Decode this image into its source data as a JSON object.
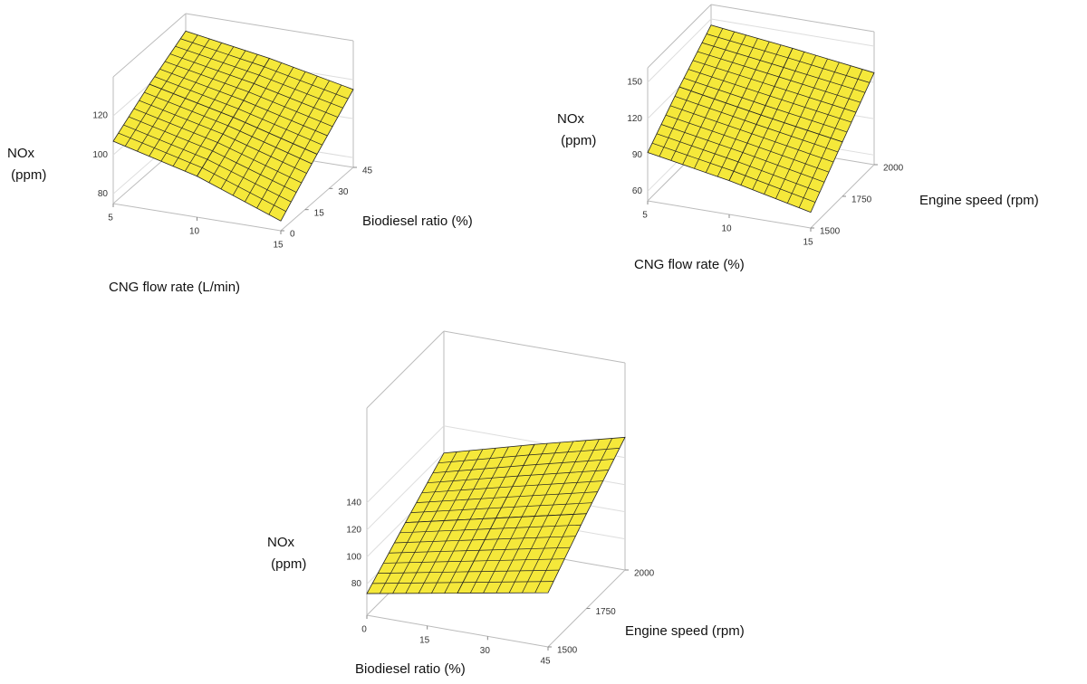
{
  "chart_data": [
    {
      "type": "surface",
      "x_label": "CNG flow rate (L/min)",
      "y_label": "Biodiesel ratio (%)",
      "z_label": "NOx (ppm)",
      "xlim": [
        5,
        15
      ],
      "ylim": [
        0,
        45
      ],
      "zlim": [
        75,
        140
      ],
      "xticks": [
        5,
        10,
        15
      ],
      "yticks": [
        0,
        15,
        30,
        45
      ],
      "zticks": [
        80,
        100,
        120
      ],
      "x": [
        5,
        10,
        15
      ],
      "y": [
        0,
        22.5,
        45
      ],
      "z": [
        [
          107,
          96,
          80
        ],
        [
          120,
          110,
          98
        ],
        [
          131,
          124,
          115
        ]
      ],
      "color": "#f5e83a"
    },
    {
      "type": "surface",
      "x_label": "CNG flow rate (%)",
      "y_label": "Engine speed (rpm)",
      "z_label": "NOx (ppm)",
      "xlim": [
        5,
        15
      ],
      "ylim": [
        1500,
        2000
      ],
      "zlim": [
        52,
        162
      ],
      "xticks": [
        5,
        10,
        15
      ],
      "yticks": [
        1500,
        1750,
        2000
      ],
      "zticks": [
        60,
        90,
        120,
        150
      ],
      "x": [
        5,
        10,
        15
      ],
      "y": [
        1500,
        1750,
        2000
      ],
      "z": [
        [
          92,
          80,
          65
        ],
        [
          120,
          108,
          97
        ],
        [
          145,
          137,
          128
        ]
      ],
      "color": "#f5e83a"
    },
    {
      "type": "surface",
      "x_label": "Biodiesel ratio (%)",
      "y_label": "Engine speed (rpm)",
      "z_label": "NOx (ppm)",
      "xlim": [
        0,
        45
      ],
      "ylim": [
        1500,
        2000
      ],
      "zlim": [
        57,
        210
      ],
      "xticks": [
        0,
        15,
        30,
        45
      ],
      "yticks": [
        1500,
        1750,
        2000
      ],
      "zticks": [
        80,
        100,
        120,
        140
      ],
      "x": [
        0,
        22.5,
        45
      ],
      "y": [
        1500,
        1750,
        2000
      ],
      "z": [
        [
          73,
          85,
          97
        ],
        [
          97,
          112,
          127
        ],
        [
          120,
          138,
          155
        ]
      ],
      "color": "#f5e83a"
    }
  ]
}
